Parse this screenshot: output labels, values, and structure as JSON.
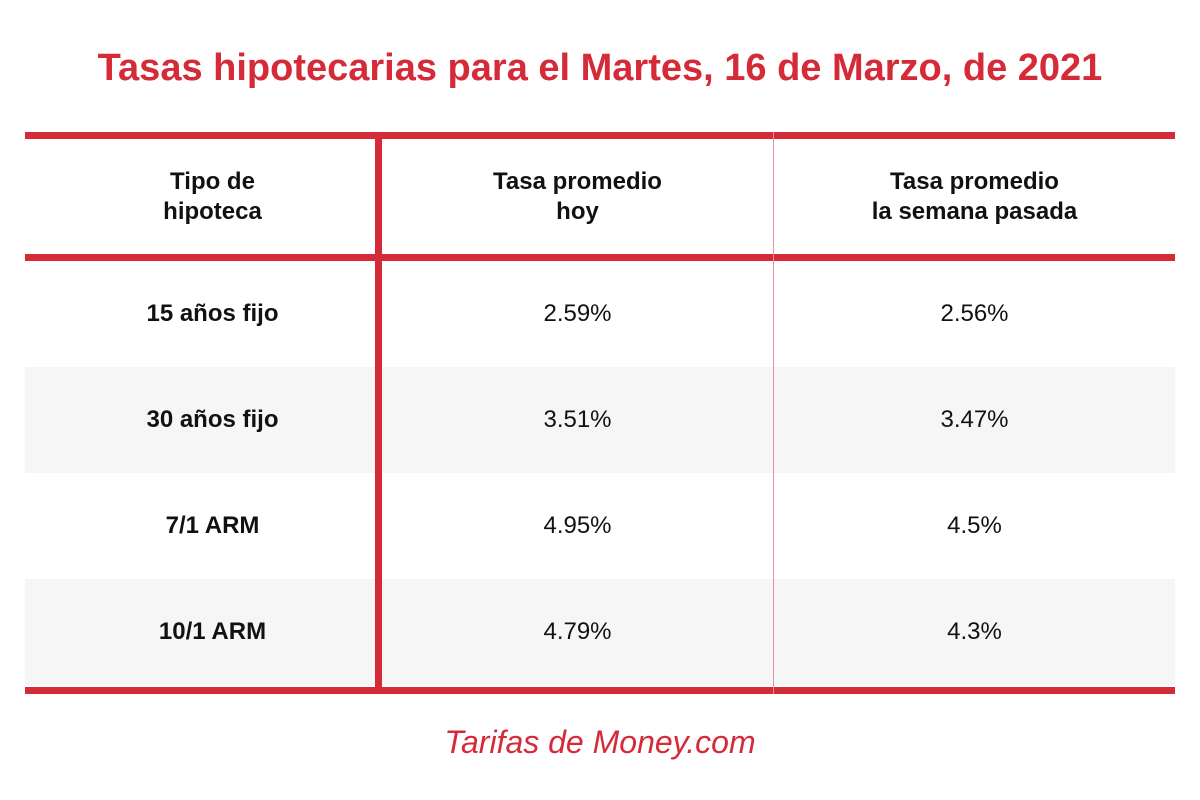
{
  "chart_data": {
    "type": "table",
    "title": "Tasas hipotecarias para el Martes, 16 de Marzo, de 2021",
    "columns": [
      [
        "Tipo de",
        "hipoteca"
      ],
      [
        "Tasa promedio",
        "hoy"
      ],
      [
        "Tasa promedio",
        "la semana pasada"
      ]
    ],
    "rows": [
      [
        "15 años fijo",
        "2.59%",
        "2.56%"
      ],
      [
        "30 años fijo",
        "3.51%",
        "3.47%"
      ],
      [
        "7/1 ARM",
        "4.95%",
        "4.5%"
      ],
      [
        "10/1 ARM",
        "4.79%",
        "4.3%"
      ]
    ],
    "source": "Tarifas de Money.com"
  },
  "colors": {
    "accent": "#d52a38",
    "text": "#111111",
    "row_shade": "#f6f6f6"
  }
}
